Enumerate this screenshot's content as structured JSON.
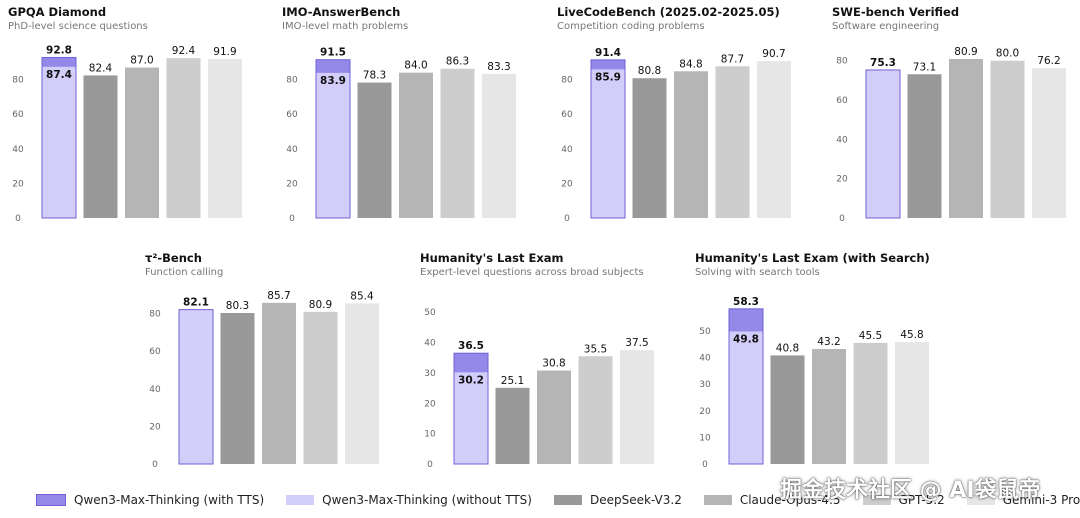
{
  "colors": {
    "with_tts": "#9488e8",
    "without_tts": "#d3cdfa",
    "with_tts_border": "#6f62d6",
    "deepseek": "#999999",
    "claude": "#b5b5b5",
    "gpt": "#cdcdcd",
    "gemini": "#e6e6e6"
  },
  "legend": [
    {
      "label": "Qwen3-Max-Thinking (with TTS)",
      "color": "#9488e8"
    },
    {
      "label": "Qwen3-Max-Thinking (without TTS)",
      "color": "#d3cdfa"
    },
    {
      "label": "DeepSeek-V3.2",
      "color": "#999999"
    },
    {
      "label": "Claude-Opus-4.5",
      "color": "#b5b5b5"
    },
    {
      "label": "GPT-5.2",
      "color": "#cdcdcd"
    },
    {
      "label": "Gemini-3 Pro",
      "color": "#e6e6e6"
    }
  ],
  "watermark": "掘金技术社区 @ AI袋鼠帝",
  "chart_data": [
    {
      "type": "bar",
      "title": "GPQA Diamond",
      "subtitle": "PhD-level science questions",
      "ylim": [
        0,
        100
      ],
      "yticks": [
        0,
        20,
        40,
        60,
        80
      ],
      "qwen_with_tts": 92.8,
      "qwen_without_tts": 87.4,
      "others": [
        82.4,
        87.0,
        92.4,
        91.9
      ]
    },
    {
      "type": "bar",
      "title": "IMO-AnswerBench",
      "subtitle": "IMO-level math problems",
      "ylim": [
        0,
        100
      ],
      "yticks": [
        0,
        20,
        40,
        60,
        80
      ],
      "qwen_with_tts": 91.5,
      "qwen_without_tts": 83.9,
      "others": [
        78.3,
        84.0,
        86.3,
        83.3
      ]
    },
    {
      "type": "bar",
      "title": "LiveCodeBench (2025.02-2025.05)",
      "subtitle": "Competition coding problems",
      "ylim": [
        0,
        100
      ],
      "yticks": [
        0,
        20,
        40,
        60,
        80
      ],
      "qwen_with_tts": 91.4,
      "qwen_without_tts": 85.9,
      "others": [
        80.8,
        84.8,
        87.7,
        90.7
      ]
    },
    {
      "type": "bar",
      "title": "SWE-bench Verified",
      "subtitle": "Software engineering",
      "ylim": [
        0,
        88
      ],
      "yticks": [
        0,
        20,
        40,
        60,
        80
      ],
      "qwen_with_tts": null,
      "qwen_without_tts": 75.3,
      "others": [
        73.1,
        80.9,
        80.0,
        76.2
      ]
    },
    {
      "type": "bar",
      "title": "τ²-Bench",
      "subtitle": "Function calling",
      "ylim": [
        0,
        92
      ],
      "yticks": [
        0,
        20,
        40,
        60,
        80
      ],
      "qwen_with_tts": null,
      "qwen_without_tts": 82.1,
      "others": [
        80.3,
        85.7,
        80.9,
        85.4
      ]
    },
    {
      "type": "bar",
      "title": "Humanity's Last Exam",
      "subtitle": "Expert-level questions across broad subjects",
      "ylim": [
        0,
        57
      ],
      "yticks": [
        0,
        10,
        20,
        30,
        40,
        50
      ],
      "qwen_with_tts": 36.5,
      "qwen_without_tts": 30.2,
      "others": [
        25.1,
        30.8,
        35.5,
        37.5
      ]
    },
    {
      "type": "bar",
      "title": "Humanity's Last Exam (with Search)",
      "subtitle": "Solving with search tools",
      "ylim": [
        0,
        65
      ],
      "yticks": [
        0,
        10,
        20,
        30,
        40,
        50
      ],
      "qwen_with_tts": 58.3,
      "qwen_without_tts": 49.8,
      "others": [
        40.8,
        43.2,
        45.5,
        45.8
      ]
    }
  ]
}
